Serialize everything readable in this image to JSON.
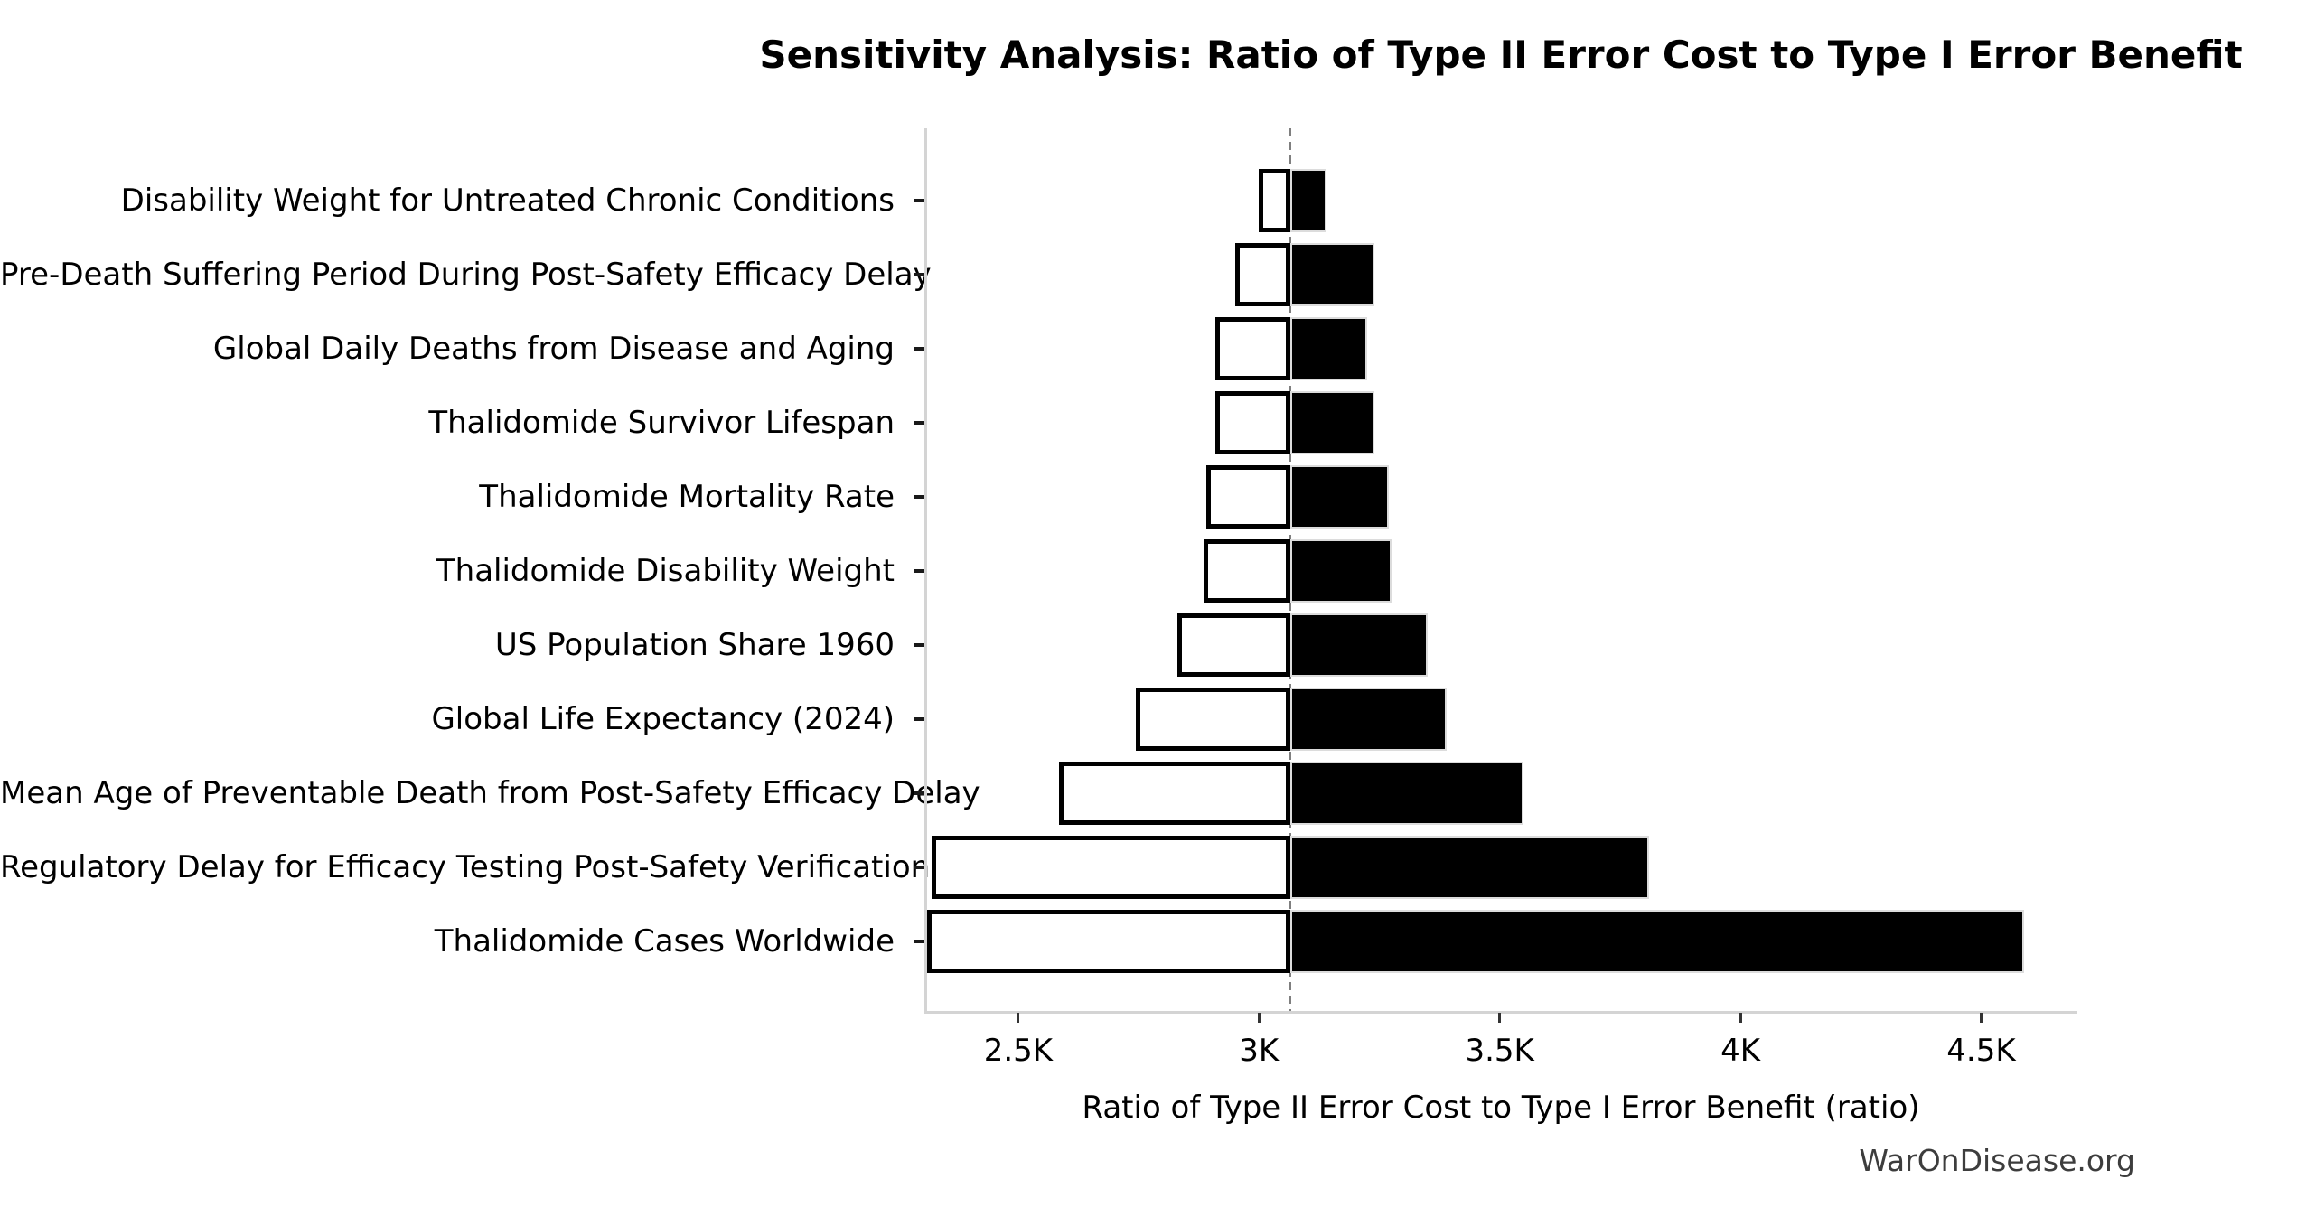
{
  "title": "Sensitivity Analysis: Ratio of Type II Error Cost to Type I Error Benefit",
  "watermark": "WarOnDisease.org",
  "chart_data": {
    "type": "bar",
    "subtype": "tornado",
    "orientation": "horizontal",
    "title": "Sensitivity Analysis: Ratio of Type II Error Cost to Type I Error Benefit",
    "xlabel": "Ratio of Type II Error Cost to Type I Error Benefit (ratio)",
    "ylabel": "",
    "base_value": 3065,
    "baseline_style": "dashed-gray-vertical",
    "xlim": [
      2305,
      4700
    ],
    "grid": false,
    "legend": "none",
    "x_ticks": [
      {
        "value": 2500,
        "label": "2.5K"
      },
      {
        "value": 3000,
        "label": "3K"
      },
      {
        "value": 3500,
        "label": "3.5K"
      },
      {
        "value": 4000,
        "label": "4K"
      },
      {
        "value": 4500,
        "label": "4.5K"
      }
    ],
    "categories": [
      "Disability Weight for Untreated Chronic Conditions",
      "Pre-Death Suffering Period During Post-Safety Efficacy Delay",
      "Global Daily Deaths from Disease and Aging",
      "Thalidomide Survivor Lifespan",
      "Thalidomide Mortality Rate",
      "Thalidomide Disability Weight",
      "US Population Share 1960",
      "Global Life Expectancy (2024)",
      "Mean Age of Preventable Death from Post-Safety Efficacy Delay",
      "Regulatory Delay for Efficacy Testing Post-Safety Verification",
      "Thalidomide Cases Worldwide"
    ],
    "series": [
      {
        "name": "low",
        "style": "white-fill-black-border",
        "values": [
          3000,
          2950,
          2910,
          2910,
          2890,
          2885,
          2830,
          2745,
          2585,
          2320,
          2310
        ]
      },
      {
        "name": "high",
        "style": "black-fill",
        "values": [
          3140,
          3240,
          3225,
          3240,
          3270,
          3275,
          3350,
          3390,
          3550,
          3810,
          4590
        ]
      }
    ],
    "colors": {
      "bar_high_fill": "#000000",
      "bar_low_fill": "#ffffff",
      "bar_low_border": "#000000",
      "axis_line": "#d4d4d4",
      "tick_mark": "#1a1a1a",
      "baseline_dash": "#7f7f7f",
      "text": "#000000",
      "watermark_text": "#3d3d3d",
      "background": "#ffffff"
    }
  }
}
